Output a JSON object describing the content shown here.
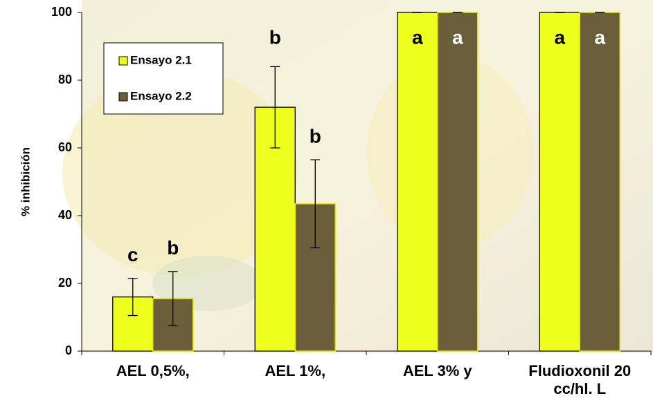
{
  "chart_data": {
    "type": "bar",
    "y_label": "% inhibición",
    "categories": [
      "AEL 0,5%,",
      "AEL 1%,",
      "AEL 3% y",
      "Fludioxonil 20 cc/hl. L"
    ],
    "series": [
      {
        "name": "Ensayo 2.1",
        "color": "#eeff1e",
        "values": [
          16,
          72,
          100,
          100
        ],
        "errors": [
          5.5,
          12,
          0,
          0
        ],
        "letters": [
          "c",
          "b",
          "a",
          "a"
        ],
        "letter_color_inside": "#000000"
      },
      {
        "name": "Ensayo 2.2",
        "color": "#6b5f3b",
        "values": [
          15.5,
          43.5,
          100,
          100
        ],
        "errors": [
          8,
          13,
          0,
          0
        ],
        "letters": [
          "b",
          "b",
          "a",
          "a"
        ],
        "letter_color_inside": "#ffffff"
      }
    ],
    "ylim": [
      0,
      100
    ],
    "yticks": [
      0,
      20,
      40,
      60,
      80,
      100
    ]
  }
}
